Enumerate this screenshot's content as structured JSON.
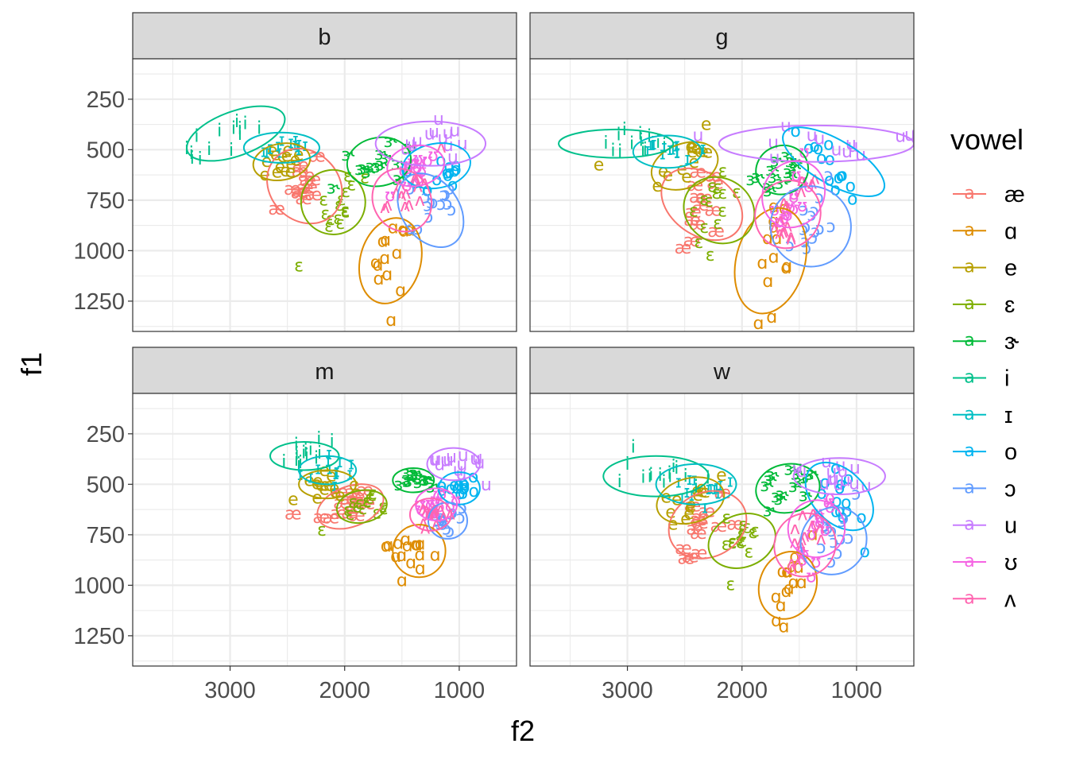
{
  "chart_data": {
    "type": "scatter",
    "xlabel": "f2",
    "ylabel": "f1",
    "x_reversed": true,
    "y_reversed": true,
    "xlim": [
      3850,
      500
    ],
    "ylim": [
      1400,
      50
    ],
    "x_major_ticks": [
      3000,
      2000,
      1000
    ],
    "x_tick_labels": [
      "3000",
      "2000",
      "1000"
    ],
    "y_major_ticks": [
      250,
      500,
      750,
      1000,
      1250
    ],
    "y_tick_labels": [
      "250",
      "500",
      "750",
      "1000",
      "1250"
    ],
    "grid": true,
    "legend": {
      "title": "vowel",
      "placement": "right",
      "items": [
        {
          "label": "æ",
          "color": "#F8766D"
        },
        {
          "label": "ɑ",
          "color": "#DE8C00"
        },
        {
          "label": "e",
          "color": "#B79F00"
        },
        {
          "label": "ɛ",
          "color": "#7CAE00"
        },
        {
          "label": "ɝ",
          "color": "#00BA38"
        },
        {
          "label": "i",
          "color": "#00C08B"
        },
        {
          "label": "ɪ",
          "color": "#00BFC4"
        },
        {
          "label": "o",
          "color": "#00B4F0"
        },
        {
          "label": "ɔ",
          "color": "#619CFF"
        },
        {
          "label": "u",
          "color": "#C77CFF"
        },
        {
          "label": "ʊ",
          "color": "#F564E3"
        },
        {
          "label": "ʌ",
          "color": "#FF64B0"
        }
      ]
    },
    "legend_key_glyph": "a",
    "panels": [
      {
        "label": "b",
        "ellipses": {
          "i": {
            "cx": 2950,
            "cy": 420,
            "rx": 450,
            "ry": 110,
            "rot": 20
          },
          "ɪ": {
            "cx": 2550,
            "cy": 490,
            "rx": 330,
            "ry": 75,
            "rot": 0
          },
          "e": {
            "cx": 2550,
            "cy": 560,
            "rx": 250,
            "ry": 90,
            "rot": 10
          },
          "æ": {
            "cx": 2350,
            "cy": 680,
            "rx": 300,
            "ry": 200,
            "rot": 45
          },
          "ɛ": {
            "cx": 2100,
            "cy": 760,
            "rx": 280,
            "ry": 160,
            "rot": 30
          },
          "ɝ": {
            "cx": 1700,
            "cy": 560,
            "rx": 280,
            "ry": 120,
            "rot": 10
          },
          "u": {
            "cx": 1250,
            "cy": 470,
            "rx": 480,
            "ry": 110,
            "rot": 0
          },
          "o": {
            "cx": 1200,
            "cy": 580,
            "rx": 300,
            "ry": 110,
            "rot": 10
          },
          "ɔ": {
            "cx": 1250,
            "cy": 800,
            "rx": 250,
            "ry": 200,
            "rot": 35
          },
          "ʊ": {
            "cx": 1380,
            "cy": 580,
            "rx": 250,
            "ry": 100,
            "rot": 10
          },
          "ʌ": {
            "cx": 1500,
            "cy": 750,
            "rx": 250,
            "ry": 160,
            "rot": 30
          },
          "ɑ": {
            "cx": 1600,
            "cy": 1050,
            "rx": 380,
            "ry": 150,
            "rot": 75
          }
        },
        "centers": {
          "i": [
            3000,
            420
          ],
          "ɪ": [
            2550,
            500
          ],
          "e": [
            2550,
            560
          ],
          "æ": [
            2400,
            700
          ],
          "ɛ": [
            2050,
            780
          ],
          "ɝ": [
            1700,
            560
          ],
          "u": [
            1200,
            470
          ],
          "o": [
            1150,
            620
          ],
          "ɔ": [
            1250,
            800
          ],
          "ʊ": [
            1400,
            600
          ],
          "ʌ": [
            1500,
            720
          ],
          "ɑ": [
            1600,
            1050
          ]
        },
        "outliers": [
          {
            "vowel": "ɛ",
            "f2": 2400,
            "f1": 1080
          }
        ]
      },
      {
        "label": "g",
        "ellipses": {
          "i": {
            "cx": 3100,
            "cy": 470,
            "rx": 500,
            "ry": 70,
            "rot": 0
          },
          "ɪ": {
            "cx": 2650,
            "cy": 510,
            "rx": 300,
            "ry": 80,
            "rot": 0
          },
          "e": {
            "cx": 2500,
            "cy": 580,
            "rx": 300,
            "ry": 110,
            "rot": 20
          },
          "æ": {
            "cx": 2350,
            "cy": 770,
            "rx": 270,
            "ry": 220,
            "rot": 55
          },
          "ɛ": {
            "cx": 2200,
            "cy": 800,
            "rx": 280,
            "ry": 180,
            "rot": 60
          },
          "ɝ": {
            "cx": 1650,
            "cy": 600,
            "rx": 230,
            "ry": 120,
            "rot": 20
          },
          "u": {
            "cx": 1350,
            "cy": 470,
            "rx": 850,
            "ry": 90,
            "rot": 0
          },
          "o": {
            "cx": 1200,
            "cy": 560,
            "rx": 500,
            "ry": 110,
            "rot": -30
          },
          "ɔ": {
            "cx": 1400,
            "cy": 880,
            "rx": 350,
            "ry": 200,
            "rot": 50
          },
          "ʊ": {
            "cx": 1550,
            "cy": 720,
            "rx": 300,
            "ry": 150,
            "rot": 60
          },
          "ʌ": {
            "cx": 1600,
            "cy": 820,
            "rx": 300,
            "ry": 160,
            "rot": 60
          },
          "ɑ": {
            "cx": 1750,
            "cy": 1050,
            "rx": 470,
            "ry": 170,
            "rot": 75
          }
        },
        "centers": {
          "i": [
            3000,
            470
          ],
          "ɪ": [
            2650,
            510
          ],
          "e": [
            2500,
            580
          ],
          "æ": [
            2350,
            770
          ],
          "ɛ": [
            2250,
            800
          ],
          "ɝ": [
            1650,
            610
          ],
          "u": [
            1300,
            470
          ],
          "o": [
            1200,
            580
          ],
          "ɔ": [
            1400,
            870
          ],
          "ʊ": [
            1550,
            720
          ],
          "ʌ": [
            1600,
            820
          ],
          "ɑ": [
            1750,
            1050
          ]
        },
        "outliers": [
          {
            "vowel": "e",
            "f2": 3250,
            "f1": 580
          }
        ]
      },
      {
        "label": "m",
        "ellipses": {
          "i": {
            "cx": 2350,
            "cy": 360,
            "rx": 300,
            "ry": 70,
            "rot": 0
          },
          "ɪ": {
            "cx": 2150,
            "cy": 430,
            "rx": 250,
            "ry": 70,
            "rot": 0
          },
          "e": {
            "cx": 2150,
            "cy": 500,
            "rx": 250,
            "ry": 70,
            "rot": 0
          },
          "æ": {
            "cx": 1950,
            "cy": 610,
            "rx": 300,
            "ry": 100,
            "rot": 20
          },
          "ɛ": {
            "cx": 1850,
            "cy": 610,
            "rx": 220,
            "ry": 80,
            "rot": 10
          },
          "ɝ": {
            "cx": 1400,
            "cy": 480,
            "rx": 180,
            "ry": 60,
            "rot": 0
          },
          "u": {
            "cx": 1050,
            "cy": 400,
            "rx": 230,
            "ry": 80,
            "rot": 0
          },
          "o": {
            "cx": 1000,
            "cy": 520,
            "rx": 180,
            "ry": 80,
            "rot": 0
          },
          "ɔ": {
            "cx": 1100,
            "cy": 680,
            "rx": 170,
            "ry": 90,
            "rot": 0
          },
          "ʊ": {
            "cx": 1200,
            "cy": 600,
            "rx": 180,
            "ry": 80,
            "rot": 0
          },
          "ʌ": {
            "cx": 1250,
            "cy": 650,
            "rx": 180,
            "ry": 80,
            "rot": 0
          },
          "ɑ": {
            "cx": 1350,
            "cy": 830,
            "rx": 230,
            "ry": 130,
            "rot": 0
          }
        },
        "centers": {
          "i": [
            2350,
            360
          ],
          "ɪ": [
            2150,
            430
          ],
          "e": [
            2150,
            500
          ],
          "æ": [
            1950,
            610
          ],
          "ɛ": [
            1850,
            610
          ],
          "ɝ": [
            1400,
            480
          ],
          "u": [
            1050,
            400
          ],
          "o": [
            1000,
            520
          ],
          "ɔ": [
            1100,
            680
          ],
          "ʊ": [
            1200,
            600
          ],
          "ʌ": [
            1250,
            650
          ],
          "ɑ": [
            1350,
            830
          ]
        },
        "outliers": [
          {
            "vowel": "e",
            "f2": 2450,
            "f1": 580
          },
          {
            "vowel": "æ",
            "f2": 2450,
            "f1": 650
          },
          {
            "vowel": "ɛ",
            "f2": 2200,
            "f1": 730
          },
          {
            "vowel": "ɑ",
            "f2": 1500,
            "f1": 980
          }
        ]
      },
      {
        "label": "w",
        "ellipses": {
          "i": {
            "cx": 2750,
            "cy": 460,
            "rx": 460,
            "ry": 100,
            "rot": 0
          },
          "ɪ": {
            "cx": 2400,
            "cy": 500,
            "rx": 350,
            "ry": 100,
            "rot": 0
          },
          "e": {
            "cx": 2450,
            "cy": 580,
            "rx": 300,
            "ry": 110,
            "rot": 15
          },
          "æ": {
            "cx": 2300,
            "cy": 700,
            "rx": 350,
            "ry": 160,
            "rot": 25
          },
          "ɛ": {
            "cx": 2000,
            "cy": 780,
            "rx": 300,
            "ry": 130,
            "rot": 20
          },
          "ɝ": {
            "cx": 1600,
            "cy": 520,
            "rx": 280,
            "ry": 120,
            "rot": 10
          },
          "u": {
            "cx": 1150,
            "cy": 460,
            "rx": 400,
            "ry": 90,
            "rot": 0
          },
          "o": {
            "cx": 1150,
            "cy": 560,
            "rx": 350,
            "ry": 130,
            "rot": -45
          },
          "ɔ": {
            "cx": 1200,
            "cy": 780,
            "rx": 300,
            "ry": 160,
            "rot": 55
          },
          "ʊ": {
            "cx": 1350,
            "cy": 720,
            "rx": 250,
            "ry": 140,
            "rot": 60
          },
          "ʌ": {
            "cx": 1450,
            "cy": 800,
            "rx": 280,
            "ry": 150,
            "rot": 60
          },
          "ɑ": {
            "cx": 1600,
            "cy": 1000,
            "rx": 300,
            "ry": 140,
            "rot": 70
          }
        },
        "centers": {
          "i": [
            2750,
            460
          ],
          "ɪ": [
            2400,
            500
          ],
          "e": [
            2450,
            580
          ],
          "æ": [
            2300,
            700
          ],
          "ɛ": [
            2000,
            780
          ],
          "ɝ": [
            1600,
            520
          ],
          "u": [
            1150,
            460
          ],
          "o": [
            1150,
            580
          ],
          "ɔ": [
            1200,
            780
          ],
          "ʊ": [
            1350,
            720
          ],
          "ʌ": [
            1450,
            800
          ],
          "ɑ": [
            1600,
            1000
          ]
        },
        "outliers": [
          {
            "vowel": "i",
            "f2": 2950,
            "f1": 320
          },
          {
            "vowel": "ɛ",
            "f2": 2100,
            "f1": 1000
          },
          {
            "vowel": "ɑ",
            "f2": 1700,
            "f1": 1180
          }
        ]
      }
    ]
  }
}
